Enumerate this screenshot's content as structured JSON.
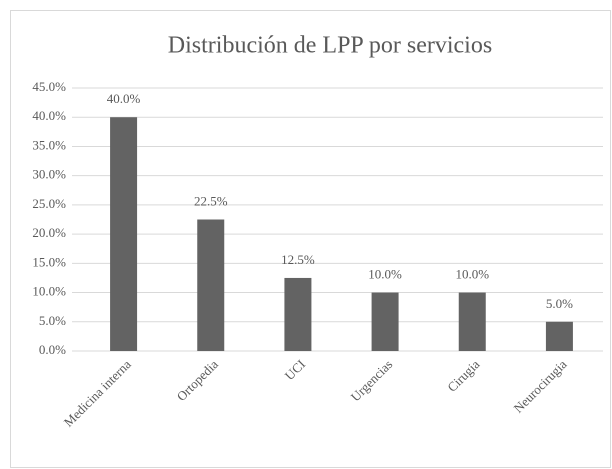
{
  "chart_data": {
    "type": "bar",
    "title": "Distribución de LPP por servicios",
    "categories": [
      "Medicina interna",
      "Ortopedia",
      "UCI",
      "Urgencias",
      "Cirugia",
      "Neurocirugia"
    ],
    "values": [
      40,
      22.5,
      12.5,
      10,
      10,
      5
    ],
    "value_labels": [
      "40.0%",
      "22.5%",
      "12.5%",
      "10.0%",
      "10.0%",
      "5.0%"
    ],
    "color": "#636363",
    "ylim": [
      0,
      45
    ],
    "yticks": [
      {
        "value": 0,
        "label": "0.0%"
      },
      {
        "value": 5,
        "label": "5.0%"
      },
      {
        "value": 10,
        "label": "10.0%"
      },
      {
        "value": 15,
        "label": "15.0%"
      },
      {
        "value": 20,
        "label": "20.0%"
      },
      {
        "value": 25,
        "label": "25.0%"
      },
      {
        "value": 30,
        "label": "30.0%"
      },
      {
        "value": 35,
        "label": "35.0%"
      },
      {
        "value": 40,
        "label": "40.0%"
      },
      {
        "value": 45,
        "label": "45.0%"
      }
    ],
    "grid": true
  }
}
